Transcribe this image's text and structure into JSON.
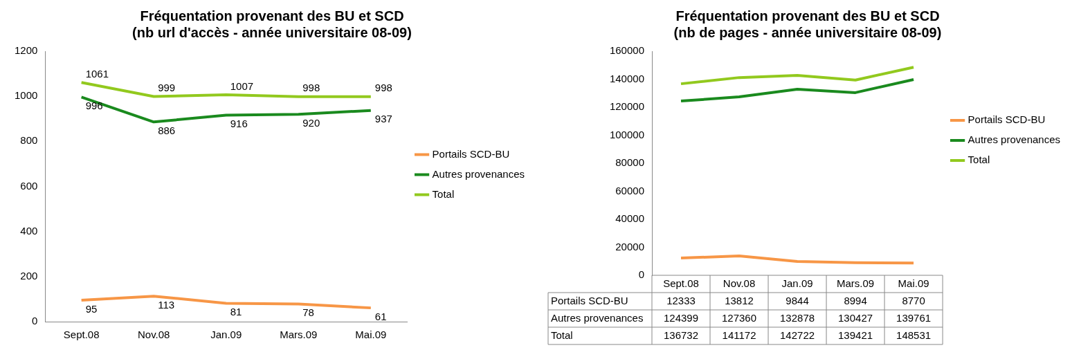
{
  "chart_data": [
    {
      "type": "line",
      "title": "Fréquentation provenant des BU et SCD",
      "subtitle": "(nb url d'accès - année universitaire 08-09)",
      "categories": [
        "Sept.08",
        "Nov.08",
        "Jan.09",
        "Mars.09",
        "Mai.09"
      ],
      "ylim": [
        0,
        1200
      ],
      "yticks": [
        0,
        200,
        400,
        600,
        800,
        1000,
        1200
      ],
      "grid": false,
      "legend": "right",
      "marker": "none",
      "data_labels": true,
      "series": [
        {
          "name": "Portails SCD-BU",
          "color": "#f79646",
          "values": [
            95,
            113,
            81,
            78,
            61
          ]
        },
        {
          "name": "Autres provenances",
          "color": "#1a8a1e",
          "values": [
            996,
            886,
            916,
            920,
            937
          ]
        },
        {
          "name": "Total",
          "color": "#92c91e",
          "values": [
            1061,
            999,
            1007,
            998,
            998
          ]
        }
      ]
    },
    {
      "type": "line",
      "title": "Fréquentation provenant des BU et SCD",
      "subtitle": "(nb de pages - année universitaire 08-09)",
      "categories": [
        "Sept.08",
        "Nov.08",
        "Jan.09",
        "Mars.09",
        "Mai.09"
      ],
      "ylim": [
        0,
        160000
      ],
      "yticks": [
        0,
        20000,
        40000,
        60000,
        80000,
        100000,
        120000,
        140000,
        160000
      ],
      "grid": false,
      "legend": "right",
      "marker": "none",
      "data_labels": true,
      "series": [
        {
          "name": "Portails SCD-BU",
          "color": "#f79646",
          "values": [
            12333,
            13812,
            9844,
            8994,
            8770
          ]
        },
        {
          "name": "Autres provenances",
          "color": "#1a8a1e",
          "values": [
            124399,
            127360,
            132878,
            130427,
            139761
          ]
        },
        {
          "name": "Total",
          "color": "#92c91e",
          "values": [
            136732,
            141172,
            142722,
            139421,
            148531
          ]
        }
      ]
    }
  ]
}
